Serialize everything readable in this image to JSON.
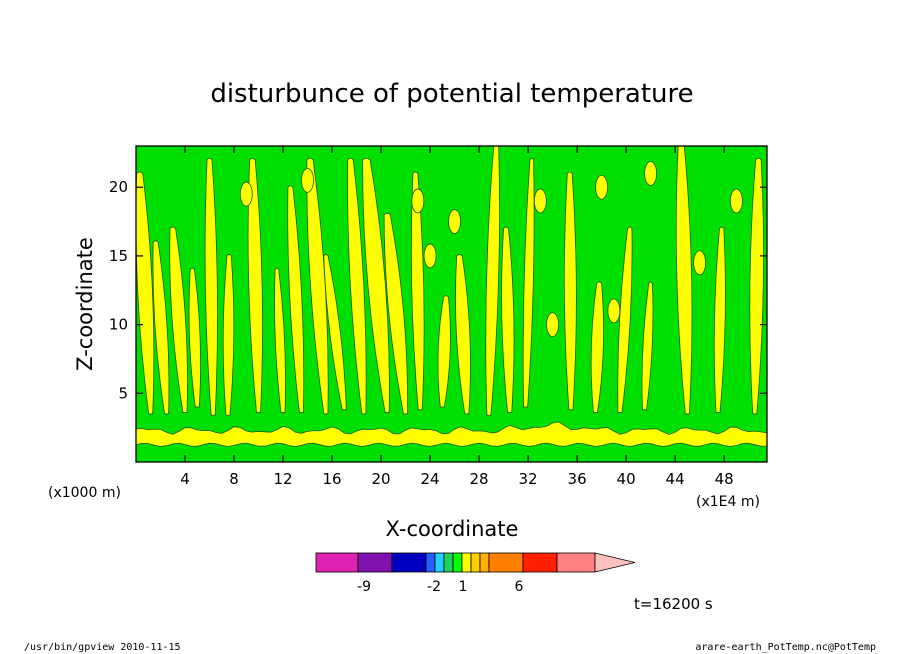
{
  "chart_data": {
    "type": "heatmap",
    "title": "disturbunce of potential temperature",
    "xlabel": "X-coordinate",
    "ylabel": "Z-coordinate",
    "x_unit": "(x1000 m)",
    "x_scale_note": "(x1E4 m)",
    "xlim": [
      0,
      51.5
    ],
    "ylim": [
      0,
      23
    ],
    "x_ticks": [
      4,
      8,
      12,
      16,
      20,
      24,
      28,
      32,
      36,
      40,
      44,
      48
    ],
    "y_ticks": [
      5,
      10,
      15,
      20
    ],
    "grid": false,
    "colorbar": {
      "orientation": "horizontal",
      "placement": "bottom",
      "tick_labels": [
        "-9",
        "-2",
        "1",
        "6"
      ],
      "colors": [
        "#e020b0",
        "#8010b0",
        "#0000c0",
        "#2060ff",
        "#20d0ff",
        "#20d060",
        "#00ff00",
        "#ffff00",
        "#ffd000",
        "#ffb000",
        "#ff8000",
        "#ff2000",
        "#ff8080",
        "#ffc0c0"
      ]
    },
    "field_colors": {
      "background": "#00e000",
      "positive": "#ffff00"
    },
    "annotation": "t=16200 s"
  },
  "footer": {
    "left": "/usr/bin/gpview   2010-11-15",
    "right": "arare-earth_PotTemp.nc@PotTemp"
  }
}
